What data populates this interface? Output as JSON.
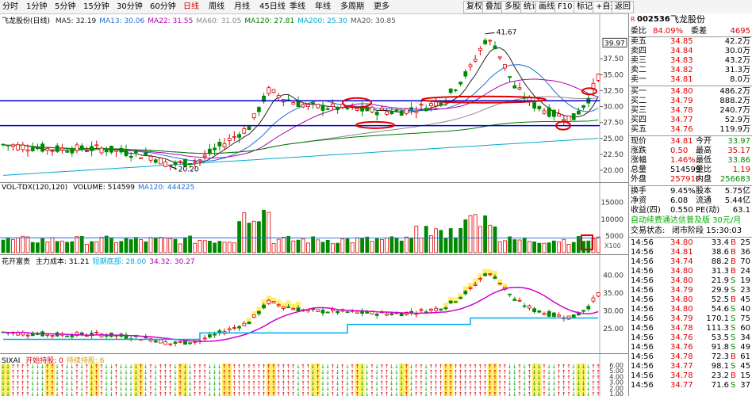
{
  "toolbar": {
    "periods": [
      "分时",
      "1分钟",
      "5分钟",
      "15分钟",
      "30分钟",
      "60分钟",
      "日线",
      "周线",
      "月线",
      "45日线",
      "季线",
      "年线",
      "多周期",
      "更多"
    ],
    "active_period": "日线",
    "buttons": [
      "复权",
      "叠加",
      "多股",
      "统计",
      "画线",
      "F10",
      "标记",
      "+自选",
      "返回"
    ]
  },
  "main_chart": {
    "title": "飞龙股份(日线)",
    "ma": [
      {
        "label": "MA5: 32.19",
        "color": "#222222"
      },
      {
        "label": "MA13: 30.06",
        "color": "#1e6fd9"
      },
      {
        "label": "MA22: 31.55",
        "color": "#b000b0"
      },
      {
        "label": "MA60: 31.05",
        "color": "#888888"
      },
      {
        "label": "MA120: 27.81",
        "color": "#007a00"
      },
      {
        "label": "MA200: 25.30",
        "color": "#00aacc"
      },
      {
        "label": "MA20: 30.85",
        "color": "#555555"
      }
    ],
    "y_ticks": [
      "37.50",
      "35.00",
      "32.50",
      "30.00",
      "27.50",
      "25.00",
      "22.50",
      "20.00"
    ],
    "last_price_tag": "39.97",
    "high_label": "41.67",
    "low_label": "20.20"
  },
  "volume_chart": {
    "title": "VOL-TDX(120,120)",
    "items": [
      {
        "label": "VOLUME: 514599",
        "color": "#000000"
      },
      {
        "label": "MA120: 444225",
        "color": "#1e6fd9"
      },
      {
        "label": "MA120: 444225",
        "color": "#1e6fd9"
      }
    ],
    "y_ticks": [
      "15000",
      "10000",
      "5000"
    ],
    "unit": "X100"
  },
  "cost_chart": {
    "title": "花开富贵",
    "items": [
      {
        "label": "主力成本: 31.21",
        "color": "#000000"
      },
      {
        "label": "短期底部: 28.00",
        "color": "#00aadd"
      },
      {
        "label": "34.32: 30.27",
        "color": "#b000b0"
      }
    ],
    "y_ticks": [
      "40.00",
      "35.00",
      "30.00",
      "25.00"
    ]
  },
  "sixai_chart": {
    "title": "SIXAI",
    "items": [
      {
        "label": "开始持股: 0",
        "color": "#d00000"
      },
      {
        "label": "持续持股: 6",
        "color": "#d0a000"
      }
    ],
    "y_ticks": [
      "6.00",
      "5.00",
      "4.00",
      "3.00",
      "2.00",
      "1.00"
    ]
  },
  "quote": {
    "code": "002536",
    "name": "飞龙股份",
    "weibi_label": "委比",
    "weibi": "84.09%",
    "weicha_label": "委差",
    "weicha": "4695",
    "asks": [
      {
        "label": "卖五",
        "price": "34.85",
        "vol": "42.2万"
      },
      {
        "label": "卖四",
        "price": "34.84",
        "vol": "30.0万"
      },
      {
        "label": "卖三",
        "price": "34.83",
        "vol": "43.2万"
      },
      {
        "label": "卖二",
        "price": "34.82",
        "vol": "31.3万"
      },
      {
        "label": "卖一",
        "price": "34.81",
        "vol": "8.0万"
      }
    ],
    "bids": [
      {
        "label": "买一",
        "price": "34.80",
        "vol": "486.2万"
      },
      {
        "label": "买二",
        "price": "34.79",
        "vol": "888.2万"
      },
      {
        "label": "买三",
        "price": "34.78",
        "vol": "240.7万"
      },
      {
        "label": "买四",
        "price": "34.77",
        "vol": "52.9万"
      },
      {
        "label": "买五",
        "price": "34.76",
        "vol": "119.9万"
      }
    ],
    "stats": [
      {
        "l1": "现价",
        "v1": "34.81",
        "c1": "red",
        "l2": "今开",
        "v2": "33.97",
        "c2": "green"
      },
      {
        "l1": "涨跌",
        "v1": "0.50",
        "c1": "red",
        "l2": "最高",
        "v2": "35.17",
        "c2": "red"
      },
      {
        "l1": "涨幅",
        "v1": "1.46%",
        "c1": "red",
        "l2": "最低",
        "v2": "33.86",
        "c2": "green"
      },
      {
        "l1": "总量",
        "v1": "514599",
        "c1": "black",
        "l2": "量比",
        "v2": "1.19",
        "c2": "red"
      },
      {
        "l1": "外盘",
        "v1": "257916",
        "c1": "red",
        "l2": "内盘",
        "v2": "256683",
        "c2": "green"
      }
    ],
    "stats2": [
      {
        "l1": "换手",
        "v1": "9.45%",
        "l2": "股本",
        "v2": "5.75亿"
      },
      {
        "l1": "净资",
        "v1": "6.08",
        "l2": "流通",
        "v2": "5.44亿"
      },
      {
        "l1": "收益(四)",
        "v1": "0.550",
        "l2": "PE(动)",
        "v2": "63.1"
      }
    ],
    "promo": "自动续费通达信普及版 30元/月",
    "status_label": "交易状态:",
    "status": "闭市阶段 15:30:03",
    "ticks": [
      {
        "t": "14:56",
        "p": "34.80",
        "v": "33.4",
        "d": "万",
        "s": "B",
        "n": "25",
        "pc": "red",
        "sc": "red"
      },
      {
        "t": "14:56",
        "p": "34.81",
        "v": "38.6",
        "d": "万",
        "s": "B",
        "n": "36",
        "pc": "red",
        "sc": "red"
      },
      {
        "t": "14:56",
        "p": "34.74",
        "v": "88.2",
        "d": "万",
        "s": "B",
        "n": "70",
        "pc": "red",
        "sc": "red"
      },
      {
        "t": "14:56",
        "p": "34.80",
        "v": "31.3",
        "d": "万",
        "s": "B",
        "n": "24",
        "pc": "red",
        "sc": "red"
      },
      {
        "t": "14:56",
        "p": "34.80",
        "v": "21.9",
        "d": "万",
        "s": "S",
        "n": "19",
        "pc": "red",
        "sc": "green"
      },
      {
        "t": "14:56",
        "p": "34.79",
        "v": "29.9",
        "d": "万",
        "s": "S",
        "n": "23",
        "pc": "red",
        "sc": "green"
      },
      {
        "t": "14:56",
        "p": "34.80",
        "v": "52.5",
        "d": "万",
        "s": "B",
        "n": "45",
        "pc": "red",
        "sc": "red"
      },
      {
        "t": "14:56",
        "p": "34.80",
        "v": "54.6",
        "d": "万",
        "s": "S",
        "n": "40",
        "pc": "red",
        "sc": "green"
      },
      {
        "t": "14:56",
        "p": "34.79",
        "v": "170.1",
        "d": "万",
        "s": "S",
        "n": "75",
        "pc": "red",
        "sc": "green"
      },
      {
        "t": "14:56",
        "p": "34.78",
        "v": "111.3",
        "d": "万",
        "s": "S",
        "n": "60",
        "pc": "red",
        "sc": "green"
      },
      {
        "t": "14:56",
        "p": "34.76",
        "v": "53.5",
        "d": "万",
        "s": "S",
        "n": "34",
        "pc": "red",
        "sc": "green"
      },
      {
        "t": "14:56",
        "p": "34.76",
        "v": "91.8",
        "d": "万",
        "s": "S",
        "n": "49",
        "pc": "red",
        "sc": "green"
      },
      {
        "t": "14:56",
        "p": "34.78",
        "v": "72.3",
        "d": "万",
        "s": "B",
        "n": "61",
        "pc": "red",
        "sc": "red"
      },
      {
        "t": "14:56",
        "p": "34.77",
        "v": "98.1",
        "d": "万",
        "s": "S",
        "n": "45",
        "pc": "red",
        "sc": "green"
      },
      {
        "t": "14:56",
        "p": "34.78",
        "v": "23.2",
        "d": "万",
        "s": "B",
        "n": "15",
        "pc": "red",
        "sc": "red"
      },
      {
        "t": "14:56",
        "p": "34.77",
        "v": "71.6",
        "d": "万",
        "s": "S",
        "n": "37",
        "pc": "red",
        "sc": "green"
      }
    ]
  },
  "chart_data": {
    "type": "candlestick",
    "ohlc_summary": {
      "high": 41.67,
      "low": 20.2,
      "last_close": 34.81
    },
    "y_range": [
      19,
      39.97
    ],
    "key_markers": [
      "41.67",
      "20.20"
    ]
  }
}
